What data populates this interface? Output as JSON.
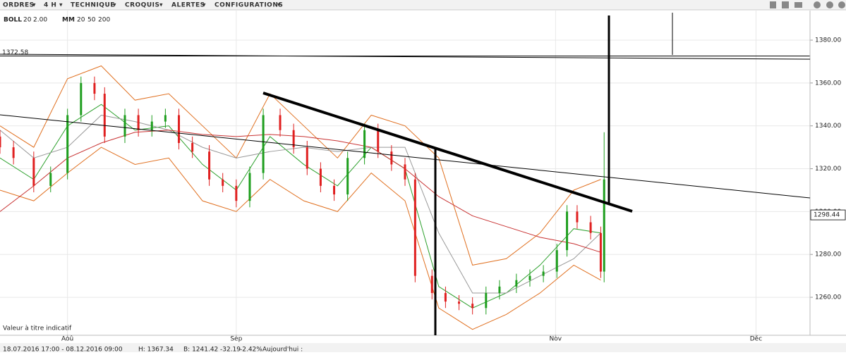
{
  "toolbar": [
    "ORDRES",
    "4 H",
    "TECHNIQUE",
    "CROQUIS",
    "ALERTES",
    "CONFIGURATIONS"
  ],
  "legend": {
    "boll": "BOLL",
    "boll_period": "20",
    "boll_dev": "2.00",
    "mm": "MM",
    "mm_1": "20",
    "mm_2": "50",
    "mm_3": "200"
  },
  "note": "Valeur à titre indicatif",
  "status": {
    "range": "18.07.2016 17:00 - 08.12.2016 09:00",
    "high": "H: 1367.34",
    "low": "B: 1241.42",
    "change": "-32.19",
    "change_pct": "-2.42%",
    "today": "Aujourd'hui :"
  },
  "chart_data": {
    "type": "candlestick",
    "xlim": [
      0,
      240
    ],
    "ylim": [
      1242.6,
      1393.8
    ],
    "grid": true,
    "xticks": [
      {
        "value": 20,
        "label": "Aoû"
      },
      {
        "value": 70,
        "label": "Sep"
      },
      {
        "value": 164.6,
        "label": "Nov"
      },
      {
        "value": 224,
        "label": "Déc"
      }
    ],
    "yticks": [
      {
        "value": 1260,
        "label": "1260.00"
      },
      {
        "value": 1280,
        "label": "1280.00"
      },
      {
        "value": 1300,
        "label": "1300.00"
      },
      {
        "value": 1320,
        "label": "1320.00"
      },
      {
        "value": 1340,
        "label": "1340.00"
      },
      {
        "value": 1360,
        "label": "1360.00"
      },
      {
        "value": 1380,
        "label": "1380.00"
      }
    ],
    "up_color": "#1e9e1e",
    "down_color": "#e02020",
    "x": [
      0,
      4,
      10,
      15,
      20,
      24,
      28,
      31,
      37,
      41,
      45,
      49,
      53,
      57,
      62,
      66,
      70,
      74,
      78,
      83,
      87,
      91,
      95,
      99,
      103,
      108,
      112,
      116,
      120,
      123,
      128,
      132,
      136,
      140,
      144,
      148,
      153,
      157,
      161,
      165,
      168,
      171,
      175,
      178,
      179
    ],
    "candles": [
      [
        1335,
        1338,
        1327,
        1330
      ],
      [
        1330,
        1333,
        1322,
        1325
      ],
      [
        1325,
        1328,
        1309,
        1312
      ],
      [
        1312,
        1321,
        1309,
        1318
      ],
      [
        1318,
        1348,
        1315,
        1345
      ],
      [
        1345,
        1363,
        1342,
        1360
      ],
      [
        1360,
        1363,
        1352,
        1355
      ],
      [
        1355,
        1358,
        1332,
        1335
      ],
      [
        1335,
        1348,
        1332,
        1345
      ],
      [
        1345,
        1348,
        1335,
        1338
      ],
      [
        1338,
        1345,
        1335,
        1342
      ],
      [
        1342,
        1348,
        1339,
        1345
      ],
      [
        1345,
        1348,
        1329,
        1332
      ],
      [
        1332,
        1335,
        1325,
        1328
      ],
      [
        1328,
        1331,
        1312,
        1315
      ],
      [
        1315,
        1318,
        1309,
        1312
      ],
      [
        1312,
        1315,
        1302,
        1305
      ],
      [
        1305,
        1321,
        1302,
        1318
      ],
      [
        1318,
        1348,
        1315,
        1345
      ],
      [
        1345,
        1348,
        1335,
        1338
      ],
      [
        1338,
        1341,
        1327,
        1330
      ],
      [
        1330,
        1333,
        1317,
        1320
      ],
      [
        1320,
        1323,
        1309,
        1312
      ],
      [
        1312,
        1315,
        1305,
        1308
      ],
      [
        1308,
        1328,
        1305,
        1325
      ],
      [
        1325,
        1341,
        1322,
        1338
      ],
      [
        1338,
        1341,
        1325,
        1328
      ],
      [
        1328,
        1331,
        1319,
        1322
      ],
      [
        1322,
        1325,
        1312,
        1315
      ],
      [
        1315,
        1318,
        1267,
        1270
      ],
      [
        1270,
        1273,
        1259,
        1262
      ],
      [
        1262,
        1265,
        1255,
        1258
      ],
      [
        1258,
        1261,
        1254,
        1257
      ],
      [
        1257,
        1260,
        1252,
        1255
      ],
      [
        1255,
        1265,
        1252,
        1262
      ],
      [
        1262,
        1268,
        1259,
        1265
      ],
      [
        1265,
        1271,
        1262,
        1268
      ],
      [
        1268,
        1273,
        1265,
        1270
      ],
      [
        1270,
        1275,
        1267,
        1272
      ],
      [
        1272,
        1285,
        1269,
        1282
      ],
      [
        1282,
        1303,
        1279,
        1300
      ],
      [
        1300,
        1303,
        1292,
        1295
      ],
      [
        1295,
        1298,
        1287,
        1290
      ],
      [
        1290,
        1293,
        1269,
        1272
      ],
      [
        1272,
        1337,
        1267,
        1315
      ]
    ],
    "line_x": [
      0,
      10,
      20,
      30,
      40,
      50,
      60,
      70,
      80,
      90,
      100,
      110,
      120,
      130,
      140,
      150,
      160,
      170,
      178
    ],
    "lines": [
      {
        "color": "#e07020",
        "values": [
          1340,
          1330,
          1362,
          1368,
          1352,
          1355,
          1340,
          1325,
          1355,
          1340,
          1325,
          1345,
          1340,
          1325,
          1275,
          1278,
          1290,
          1310,
          1315
        ]
      },
      {
        "color": "#e07020",
        "values": [
          1310,
          1305,
          1318,
          1330,
          1322,
          1325,
          1305,
          1300,
          1315,
          1305,
          1300,
          1318,
          1305,
          1255,
          1245,
          1252,
          1262,
          1275,
          1268
        ]
      },
      {
        "color": "#2ca02c",
        "values": [
          1325,
          1315,
          1340,
          1350,
          1338,
          1340,
          1322,
          1310,
          1335,
          1322,
          1312,
          1330,
          1320,
          1265,
          1255,
          1262,
          1275,
          1292,
          1290
        ]
      },
      {
        "color": "#999999",
        "values": [
          1338,
          1325,
          1330,
          1345,
          1342,
          1338,
          1330,
          1325,
          1328,
          1330,
          1328,
          1330,
          1330,
          1290,
          1262,
          1262,
          1270,
          1278,
          1290
        ]
      },
      {
        "color": "#c83232",
        "values": [
          1300,
          1312,
          1325,
          1332,
          1337,
          1338,
          1336,
          1335,
          1336,
          1335,
          1333,
          1330,
          1320,
          1307,
          1298,
          1293,
          1288,
          1285,
          1281
        ]
      }
    ],
    "level": 1372.58,
    "last_price": 1298.44
  }
}
